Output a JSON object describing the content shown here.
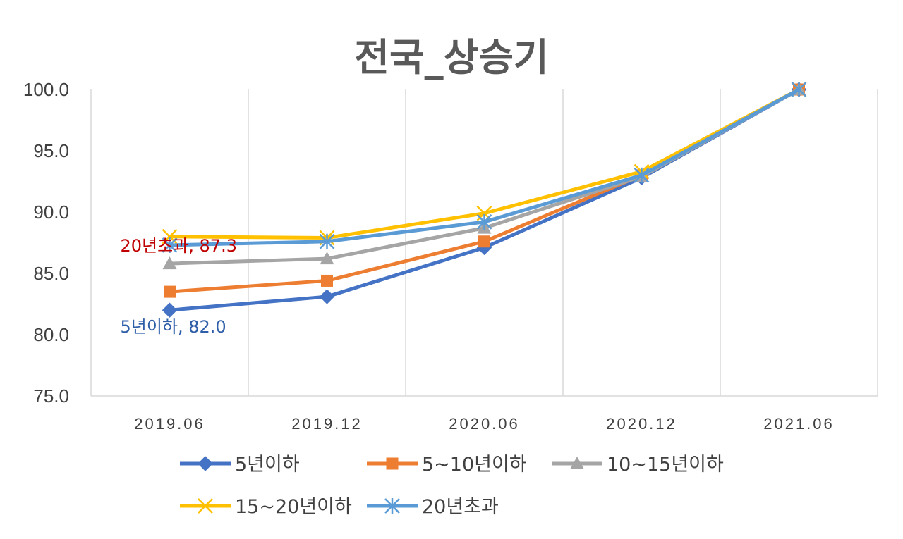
{
  "chart_data": {
    "type": "line",
    "title": "전국_상승기",
    "categories": [
      "2019.06",
      "2019.12",
      "2020.06",
      "2020.12",
      "2021.06"
    ],
    "y_tick_labels": [
      "100.0",
      "95.0",
      "90.0",
      "85.0",
      "80.0",
      "75.0"
    ],
    "ylim": [
      75,
      100
    ],
    "ystep": 5,
    "grid": "vertical",
    "legend_position": "bottom",
    "series": [
      {
        "name": "5년이하",
        "color": "#4472C4",
        "marker": "diamond",
        "values": [
          82.0,
          83.1,
          87.1,
          92.8,
          100.0
        ]
      },
      {
        "name": "5~10년이하",
        "color": "#ED7D31",
        "marker": "square",
        "values": [
          83.5,
          84.4,
          87.6,
          93.0,
          100.0
        ]
      },
      {
        "name": "10~15년이하",
        "color": "#A5A5A5",
        "marker": "triangle",
        "values": [
          85.8,
          86.2,
          88.7,
          92.9,
          100.0
        ]
      },
      {
        "name": "15~20년이하",
        "color": "#FFC000",
        "marker": "x",
        "values": [
          88.0,
          87.9,
          89.9,
          93.3,
          100.0
        ]
      },
      {
        "name": "20년초과",
        "color": "#5B9BD5",
        "marker": "star",
        "values": [
          87.3,
          87.6,
          89.2,
          93.0,
          100.0
        ]
      }
    ],
    "data_labels": [
      {
        "series": 4,
        "index": 0,
        "text": "20년초과, 87.3",
        "color": "#C00000"
      },
      {
        "series": 0,
        "index": 0,
        "text": "5년이하, 82.0",
        "color": "#2E5EA8"
      }
    ]
  }
}
